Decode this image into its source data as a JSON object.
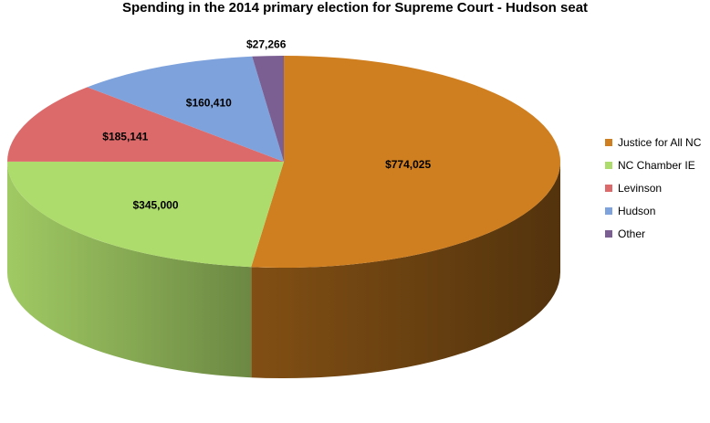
{
  "chart_data": {
    "type": "pie",
    "title": "Spending in the 2014 primary election for Supreme Court - Hudson seat",
    "slices": [
      {
        "label": "Justice for All NC",
        "value": 774025,
        "value_label": "$774,025",
        "color": "#d07f20"
      },
      {
        "label": "NC Chamber IE",
        "value": 345000,
        "value_label": "$345,000",
        "color": "#aedc6c"
      },
      {
        "label": "Levinson",
        "value": 185141,
        "value_label": "$185,141",
        "color": "#dd6a6b"
      },
      {
        "label": "Hudson",
        "value": 160410,
        "value_label": "$160,410",
        "color": "#7ea2dc"
      },
      {
        "label": "Other",
        "value": 27266,
        "value_label": "$27,266",
        "color": "#7b5e92"
      }
    ],
    "legend_position": "right",
    "style": "3d"
  }
}
